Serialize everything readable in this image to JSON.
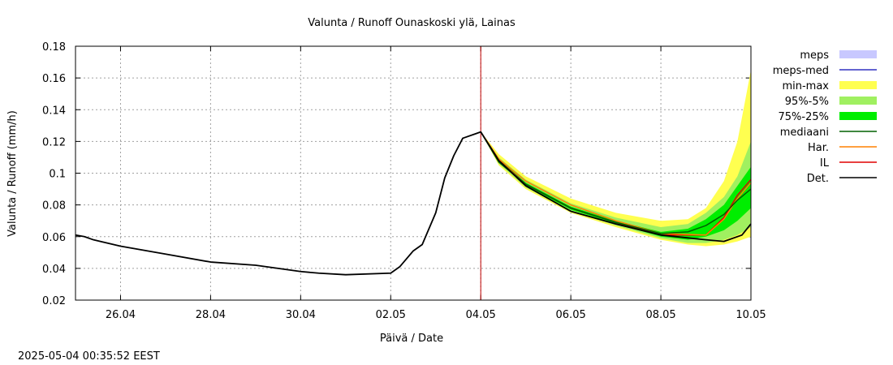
{
  "chart_data": {
    "type": "line",
    "title": "Valunta / Runoff  Ounaskoski ylä, Lainas",
    "xlabel": "Päivä / Date",
    "ylabel": "Valunta / Runoff (mm/h)",
    "timestamp": "2025-05-04 00:35:52 EEST",
    "x_range_days": [
      0,
      7.5
    ],
    "ylim": [
      0.02,
      0.18
    ],
    "y_ticks": [
      0.02,
      0.04,
      0.06,
      0.08,
      0.1,
      0.12,
      0.14,
      0.16,
      0.18
    ],
    "y_tick_labels": [
      "0.02",
      "0.04",
      "0.06",
      "0.08",
      "0.1",
      "0.12",
      "0.14",
      "0.16",
      "0.18"
    ],
    "x_ticks": [
      {
        "day": 0.5,
        "label": "26.04"
      },
      {
        "day": 1.5,
        "label": "28.04"
      },
      {
        "day": 2.5,
        "label": "30.04"
      },
      {
        "day": 3.5,
        "label": "02.05"
      },
      {
        "day": 4.5,
        "label": "04.05"
      },
      {
        "day": 5.5,
        "label": "06.05"
      },
      {
        "day": 6.5,
        "label": "08.05"
      },
      {
        "day": 7.5,
        "label": "10.05"
      }
    ],
    "forecast_start_day": 4.5,
    "grid": true,
    "legend": {
      "position": "right",
      "items": [
        {
          "label": "meps",
          "kind": "box",
          "color": "#c8c8ff"
        },
        {
          "label": "meps-med",
          "kind": "line",
          "color": "#3030c0"
        },
        {
          "label": "min-max",
          "kind": "box",
          "color": "#ffff50"
        },
        {
          "label": "95%-5%",
          "kind": "box",
          "color": "#a0f060"
        },
        {
          "label": "75%-25%",
          "kind": "box",
          "color": "#00ee00"
        },
        {
          "label": "mediaani",
          "kind": "line",
          "color": "#006000"
        },
        {
          "label": "Har.",
          "kind": "line",
          "color": "#ff8000"
        },
        {
          "label": "IL",
          "kind": "line",
          "color": "#e00000"
        },
        {
          "label": "Det.",
          "kind": "line",
          "color": "#000000"
        }
      ]
    },
    "series": [
      {
        "name": "Det.",
        "color": "#000000",
        "x": [
          0,
          0.1,
          0.2,
          0.5,
          1.0,
          1.5,
          2.0,
          2.5,
          2.7,
          3.0,
          3.5,
          3.6,
          3.75,
          3.85,
          4.0,
          4.1,
          4.2,
          4.3,
          4.45,
          4.5,
          4.7,
          5.0,
          5.5,
          6.0,
          6.5,
          7.0,
          7.2,
          7.4,
          7.5
        ],
        "y": [
          0.061,
          0.06,
          0.058,
          0.054,
          0.049,
          0.044,
          0.042,
          0.038,
          0.037,
          0.036,
          0.037,
          0.041,
          0.051,
          0.055,
          0.075,
          0.097,
          0.111,
          0.122,
          0.125,
          0.126,
          0.108,
          0.092,
          0.076,
          0.068,
          0.061,
          0.058,
          0.057,
          0.061,
          0.068
        ]
      },
      {
        "name": "IL",
        "color": "#e00000",
        "x": [
          4.5,
          4.7,
          5.0,
          5.5,
          6.0,
          6.5,
          7.0,
          7.2,
          7.35,
          7.5
        ],
        "y": [
          0.126,
          0.108,
          0.093,
          0.078,
          0.069,
          0.061,
          0.061,
          0.072,
          0.086,
          0.096
        ]
      },
      {
        "name": "Har.",
        "color": "#ff8000",
        "x": [
          4.5,
          4.7,
          5.0,
          5.5,
          6.0,
          6.5,
          7.0,
          7.2,
          7.35,
          7.5
        ],
        "y": [
          0.126,
          0.109,
          0.095,
          0.08,
          0.07,
          0.062,
          0.061,
          0.071,
          0.084,
          0.094
        ]
      },
      {
        "name": "mediaani",
        "color": "#006000",
        "x": [
          4.5,
          4.7,
          5.0,
          5.5,
          6.0,
          6.5,
          6.8,
          7.0,
          7.2,
          7.35,
          7.5
        ],
        "y": [
          0.126,
          0.107,
          0.093,
          0.078,
          0.069,
          0.062,
          0.063,
          0.067,
          0.074,
          0.083,
          0.09
        ]
      }
    ],
    "bands": [
      {
        "name": "min-max",
        "color": "#ffff50",
        "x": [
          4.5,
          4.7,
          5.0,
          5.5,
          6.0,
          6.5,
          6.8,
          7.0,
          7.2,
          7.35,
          7.5
        ],
        "lower": [
          0.126,
          0.105,
          0.09,
          0.075,
          0.066,
          0.058,
          0.055,
          0.054,
          0.055,
          0.057,
          0.06
        ],
        "upper": [
          0.126,
          0.112,
          0.098,
          0.084,
          0.075,
          0.07,
          0.071,
          0.078,
          0.095,
          0.12,
          0.165
        ]
      },
      {
        "name": "95%-5%",
        "color": "#a0f060",
        "x": [
          4.5,
          4.7,
          5.0,
          5.5,
          6.0,
          6.5,
          6.8,
          7.0,
          7.2,
          7.35,
          7.5
        ],
        "lower": [
          0.126,
          0.106,
          0.091,
          0.076,
          0.067,
          0.059,
          0.056,
          0.056,
          0.058,
          0.061,
          0.066
        ],
        "upper": [
          0.126,
          0.11,
          0.096,
          0.081,
          0.072,
          0.066,
          0.068,
          0.075,
          0.085,
          0.098,
          0.12
        ]
      },
      {
        "name": "75%-25%",
        "color": "#00ee00",
        "x": [
          4.5,
          4.7,
          5.0,
          5.5,
          6.0,
          6.5,
          6.8,
          7.0,
          7.2,
          7.35,
          7.5
        ],
        "lower": [
          0.126,
          0.107,
          0.092,
          0.077,
          0.068,
          0.06,
          0.058,
          0.06,
          0.064,
          0.07,
          0.078
        ],
        "upper": [
          0.126,
          0.109,
          0.094,
          0.079,
          0.07,
          0.063,
          0.065,
          0.071,
          0.08,
          0.092,
          0.104
        ]
      }
    ]
  }
}
